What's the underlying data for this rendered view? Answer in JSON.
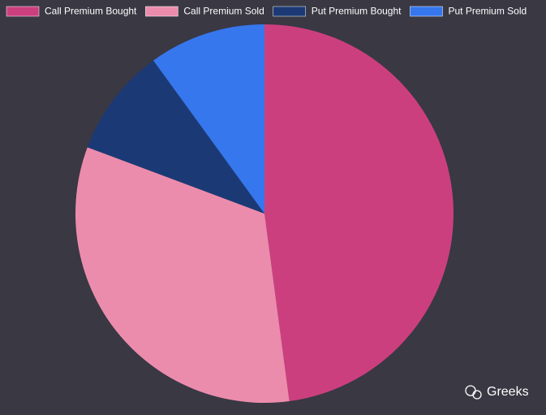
{
  "chart_data": {
    "type": "pie",
    "categories": [
      "Call Premium Bought",
      "Call Premium Sold",
      "Put Premium Bought",
      "Put Premium Sold"
    ],
    "values": [
      47.9,
      32.8,
      9.3,
      10.0
    ],
    "colors": [
      "#cc3f7f",
      "#ec8cad",
      "#1b3a75",
      "#3677ee"
    ],
    "watermark": "Greeks"
  }
}
